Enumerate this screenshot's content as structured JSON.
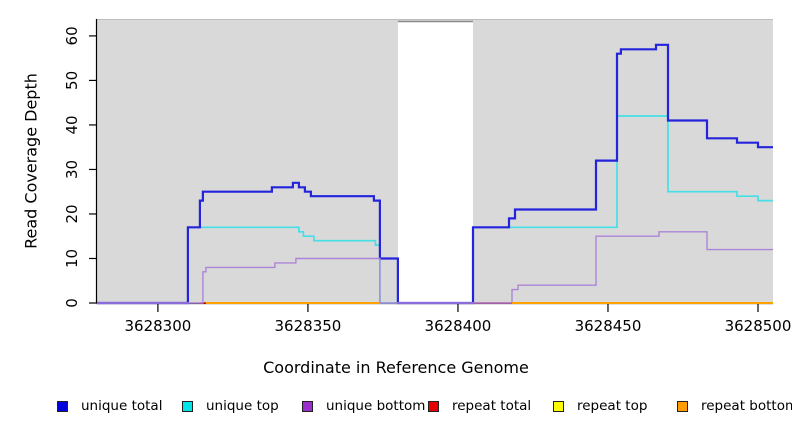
{
  "chart_data": {
    "type": "line",
    "subtype": "step-coverage",
    "title": "",
    "xlabel": "Coordinate in Reference Genome",
    "ylabel": "Read Coverage Depth",
    "xlim": [
      3628279.7,
      3628505.0
    ],
    "ylim": [
      0,
      63.8
    ],
    "x_ticks": [
      {
        "value": 3628300,
        "label": "3628300"
      },
      {
        "value": 3628350,
        "label": "3628350"
      },
      {
        "value": 3628400,
        "label": "3628400"
      },
      {
        "value": 3628450,
        "label": "3628450"
      },
      {
        "value": 3628500,
        "label": "3628500"
      }
    ],
    "y_ticks": [
      {
        "value": 0,
        "label": "0"
      },
      {
        "value": 10,
        "label": "10"
      },
      {
        "value": 20,
        "label": "20"
      },
      {
        "value": 30,
        "label": "30"
      },
      {
        "value": 40,
        "label": "40"
      },
      {
        "value": 50,
        "label": "50"
      },
      {
        "value": 60,
        "label": "60"
      }
    ],
    "plot_bg": "#d9d9d9",
    "mask_region": {
      "x0": 3628380,
      "x1": 3628405,
      "color": "#ffffff",
      "border": "#8a8a8a"
    },
    "grid": false,
    "legend_position": "bottom",
    "series": [
      {
        "name": "repeat total",
        "color": "#e60000",
        "width": 1.6,
        "segments": [
          [
            [
              3628314,
              0
            ],
            [
              3628374,
              0
            ]
          ],
          [
            [
              3628405,
              0
            ],
            [
              3628505,
              0
            ]
          ]
        ]
      },
      {
        "name": "repeat top",
        "color": "#ffff00",
        "width": 1.6,
        "segments": [
          [
            [
              3628316,
              0
            ],
            [
              3628374,
              0
            ]
          ],
          [
            [
              3628418,
              0
            ],
            [
              3628505,
              0
            ]
          ]
        ]
      },
      {
        "name": "unique top",
        "color": "#45dfe6",
        "width": 1.7,
        "segments": [
          [
            [
              3628279.7,
              0
            ],
            [
              3628310,
              17
            ],
            [
              3628347,
              16
            ],
            [
              3628348.5,
              15
            ],
            [
              3628352,
              14
            ],
            [
              3628372.5,
              13
            ],
            [
              3628374,
              0
            ],
            [
              3628405,
              17
            ],
            [
              3628453,
              42
            ],
            [
              3628470,
              25
            ],
            [
              3628493,
              24
            ],
            [
              3628500,
              23
            ],
            [
              3628505,
              23
            ]
          ]
        ]
      },
      {
        "name": "unique total",
        "color": "#2424dd",
        "width": 2.2,
        "segments": [
          [
            [
              3628279.7,
              0
            ],
            [
              3628310,
              17
            ],
            [
              3628314,
              23
            ],
            [
              3628315,
              25
            ],
            [
              3628338,
              26
            ],
            [
              3628345,
              27
            ],
            [
              3628347,
              26
            ],
            [
              3628349,
              25
            ],
            [
              3628351,
              24
            ],
            [
              3628372,
              23
            ],
            [
              3628374,
              10
            ],
            [
              3628380,
              0
            ],
            [
              3628405,
              17
            ],
            [
              3628417,
              19
            ],
            [
              3628419,
              21
            ],
            [
              3628446,
              32
            ],
            [
              3628453,
              56
            ],
            [
              3628454.3,
              57
            ],
            [
              3628466,
              58
            ],
            [
              3628470,
              41
            ],
            [
              3628483,
              37
            ],
            [
              3628493,
              36
            ],
            [
              3628500,
              35
            ],
            [
              3628505,
              35
            ]
          ]
        ]
      },
      {
        "name": "unique bottom",
        "color": "#ad85d8",
        "width": 1.4,
        "segments": [
          [
            [
              3628279.7,
              0
            ],
            [
              3628315,
              7
            ],
            [
              3628316,
              8
            ],
            [
              3628339,
              9
            ],
            [
              3628346,
              10
            ],
            [
              3628374,
              0
            ],
            [
              3628418,
              3
            ],
            [
              3628420,
              4
            ],
            [
              3628446,
              15
            ],
            [
              3628467,
              16
            ],
            [
              3628483,
              12
            ],
            [
              3628505,
              12
            ]
          ]
        ]
      },
      {
        "name": "repeat bottom",
        "color": "#ffa200",
        "width": 2,
        "segments": [
          [
            [
              3628316,
              0
            ],
            [
              3628374,
              0
            ]
          ],
          [
            [
              3628418,
              0
            ],
            [
              3628505,
              0
            ]
          ]
        ]
      }
    ],
    "legend": [
      {
        "label": "unique total",
        "color": "#0000dd"
      },
      {
        "label": "unique top",
        "color": "#00e5e5"
      },
      {
        "label": "unique bottom",
        "color": "#9a30cc"
      },
      {
        "label": "repeat total",
        "color": "#e60000"
      },
      {
        "label": "repeat top",
        "color": "#ffff00"
      },
      {
        "label": "repeat bottom",
        "color": "#ff9d00"
      }
    ]
  }
}
